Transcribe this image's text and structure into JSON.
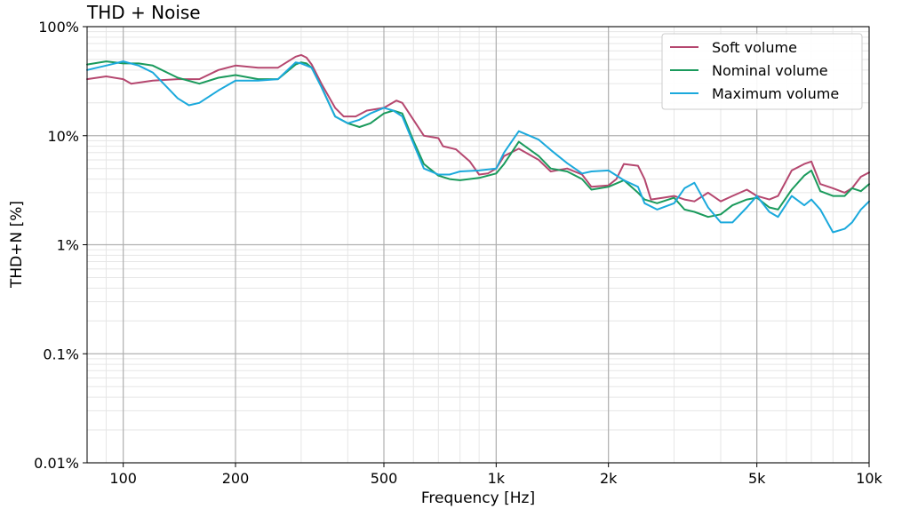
{
  "chart_data": {
    "type": "line",
    "title": "THD + Noise",
    "xlabel": "Frequency [Hz]",
    "ylabel": "THD+N [%]",
    "x_scale": "log",
    "y_scale": "log",
    "xlim": [
      80,
      10000
    ],
    "ylim": [
      0.01,
      100
    ],
    "grid": true,
    "legend_position": "top-right",
    "x_ticks": [
      {
        "value": 100,
        "label": "100"
      },
      {
        "value": 200,
        "label": "200"
      },
      {
        "value": 500,
        "label": "500"
      },
      {
        "value": 1000,
        "label": "1k"
      },
      {
        "value": 2000,
        "label": "2k"
      },
      {
        "value": 5000,
        "label": "5k"
      },
      {
        "value": 10000,
        "label": "10k"
      }
    ],
    "y_ticks": [
      {
        "value": 100,
        "label": "100%"
      },
      {
        "value": 10,
        "label": "10%"
      },
      {
        "value": 1,
        "label": "1%"
      },
      {
        "value": 0.1,
        "label": "0.1%"
      },
      {
        "value": 0.01,
        "label": "0.01%"
      }
    ],
    "series": [
      {
        "name": "Soft volume",
        "color": "#b5476f",
        "points": [
          [
            80,
            33
          ],
          [
            90,
            35
          ],
          [
            100,
            33
          ],
          [
            105,
            30
          ],
          [
            120,
            32
          ],
          [
            140,
            33
          ],
          [
            160,
            33
          ],
          [
            180,
            40
          ],
          [
            200,
            44
          ],
          [
            230,
            42
          ],
          [
            260,
            42
          ],
          [
            290,
            53
          ],
          [
            300,
            55
          ],
          [
            310,
            52
          ],
          [
            320,
            45
          ],
          [
            340,
            30
          ],
          [
            370,
            18
          ],
          [
            390,
            15
          ],
          [
            420,
            15
          ],
          [
            450,
            17
          ],
          [
            500,
            18
          ],
          [
            540,
            21
          ],
          [
            560,
            20
          ],
          [
            600,
            14
          ],
          [
            640,
            10
          ],
          [
            700,
            9.5
          ],
          [
            720,
            8
          ],
          [
            780,
            7.5
          ],
          [
            850,
            5.8
          ],
          [
            900,
            4.4
          ],
          [
            950,
            4.5
          ],
          [
            1000,
            5
          ],
          [
            1050,
            6.5
          ],
          [
            1150,
            7.6
          ],
          [
            1300,
            6
          ],
          [
            1400,
            4.7
          ],
          [
            1550,
            5
          ],
          [
            1700,
            4.4
          ],
          [
            1800,
            3.4
          ],
          [
            2000,
            3.5
          ],
          [
            2100,
            4
          ],
          [
            2200,
            5.5
          ],
          [
            2400,
            5.3
          ],
          [
            2500,
            4
          ],
          [
            2600,
            2.6
          ],
          [
            2800,
            2.7
          ],
          [
            3000,
            2.8
          ],
          [
            3200,
            2.6
          ],
          [
            3400,
            2.5
          ],
          [
            3700,
            3
          ],
          [
            4000,
            2.5
          ],
          [
            4300,
            2.8
          ],
          [
            4700,
            3.2
          ],
          [
            5000,
            2.8
          ],
          [
            5400,
            2.6
          ],
          [
            5700,
            2.8
          ],
          [
            6200,
            4.8
          ],
          [
            6700,
            5.5
          ],
          [
            7000,
            5.8
          ],
          [
            7400,
            3.6
          ],
          [
            8000,
            3.3
          ],
          [
            8600,
            3
          ],
          [
            9000,
            3.3
          ],
          [
            9500,
            4.2
          ],
          [
            10000,
            4.6
          ]
        ]
      },
      {
        "name": "Nominal volume",
        "color": "#1a9a5c",
        "points": [
          [
            80,
            45
          ],
          [
            90,
            48
          ],
          [
            100,
            46
          ],
          [
            110,
            46
          ],
          [
            120,
            44
          ],
          [
            140,
            34
          ],
          [
            160,
            30
          ],
          [
            180,
            34
          ],
          [
            200,
            36
          ],
          [
            230,
            33
          ],
          [
            260,
            33
          ],
          [
            290,
            45
          ],
          [
            300,
            47
          ],
          [
            310,
            46
          ],
          [
            320,
            42
          ],
          [
            340,
            28
          ],
          [
            370,
            15
          ],
          [
            400,
            13
          ],
          [
            430,
            12
          ],
          [
            460,
            13
          ],
          [
            500,
            16
          ],
          [
            530,
            17
          ],
          [
            560,
            16
          ],
          [
            600,
            9
          ],
          [
            640,
            5.5
          ],
          [
            700,
            4.3
          ],
          [
            750,
            4
          ],
          [
            800,
            3.9
          ],
          [
            900,
            4.1
          ],
          [
            1000,
            4.5
          ],
          [
            1050,
            5.5
          ],
          [
            1150,
            8.8
          ],
          [
            1300,
            6.5
          ],
          [
            1400,
            5
          ],
          [
            1550,
            4.7
          ],
          [
            1700,
            4
          ],
          [
            1800,
            3.2
          ],
          [
            2000,
            3.4
          ],
          [
            2200,
            3.9
          ],
          [
            2400,
            3
          ],
          [
            2500,
            2.6
          ],
          [
            2700,
            2.4
          ],
          [
            3000,
            2.7
          ],
          [
            3200,
            2.1
          ],
          [
            3400,
            2
          ],
          [
            3700,
            1.8
          ],
          [
            4000,
            1.9
          ],
          [
            4300,
            2.3
          ],
          [
            4700,
            2.6
          ],
          [
            5000,
            2.7
          ],
          [
            5400,
            2.2
          ],
          [
            5700,
            2.1
          ],
          [
            6200,
            3.2
          ],
          [
            6700,
            4.3
          ],
          [
            7000,
            4.8
          ],
          [
            7400,
            3.1
          ],
          [
            8000,
            2.8
          ],
          [
            8600,
            2.8
          ],
          [
            9000,
            3.3
          ],
          [
            9500,
            3.1
          ],
          [
            10000,
            3.6
          ]
        ]
      },
      {
        "name": "Maximum volume",
        "color": "#1ba9dc",
        "points": [
          [
            80,
            40
          ],
          [
            90,
            44
          ],
          [
            100,
            48
          ],
          [
            110,
            44
          ],
          [
            120,
            38
          ],
          [
            140,
            22
          ],
          [
            150,
            19
          ],
          [
            160,
            20
          ],
          [
            180,
            26
          ],
          [
            200,
            32
          ],
          [
            230,
            32
          ],
          [
            260,
            33
          ],
          [
            290,
            47
          ],
          [
            300,
            46
          ],
          [
            310,
            44
          ],
          [
            320,
            42
          ],
          [
            340,
            28
          ],
          [
            370,
            15
          ],
          [
            400,
            13
          ],
          [
            430,
            14
          ],
          [
            460,
            16
          ],
          [
            500,
            18
          ],
          [
            530,
            17
          ],
          [
            560,
            15
          ],
          [
            600,
            8.5
          ],
          [
            640,
            5
          ],
          [
            700,
            4.4
          ],
          [
            750,
            4.4
          ],
          [
            800,
            4.7
          ],
          [
            900,
            4.8
          ],
          [
            1000,
            5
          ],
          [
            1050,
            7
          ],
          [
            1150,
            11
          ],
          [
            1300,
            9.2
          ],
          [
            1400,
            7.4
          ],
          [
            1550,
            5.6
          ],
          [
            1700,
            4.5
          ],
          [
            1800,
            4.7
          ],
          [
            2000,
            4.8
          ],
          [
            2200,
            3.9
          ],
          [
            2400,
            3.4
          ],
          [
            2500,
            2.4
          ],
          [
            2700,
            2.1
          ],
          [
            3000,
            2.4
          ],
          [
            3200,
            3.3
          ],
          [
            3400,
            3.7
          ],
          [
            3700,
            2.2
          ],
          [
            4000,
            1.6
          ],
          [
            4300,
            1.6
          ],
          [
            4700,
            2.2
          ],
          [
            5000,
            2.8
          ],
          [
            5400,
            2
          ],
          [
            5700,
            1.8
          ],
          [
            6200,
            2.8
          ],
          [
            6700,
            2.3
          ],
          [
            7000,
            2.6
          ],
          [
            7400,
            2.1
          ],
          [
            8000,
            1.3
          ],
          [
            8600,
            1.4
          ],
          [
            9000,
            1.6
          ],
          [
            9500,
            2.1
          ],
          [
            10000,
            2.5
          ]
        ]
      }
    ]
  }
}
